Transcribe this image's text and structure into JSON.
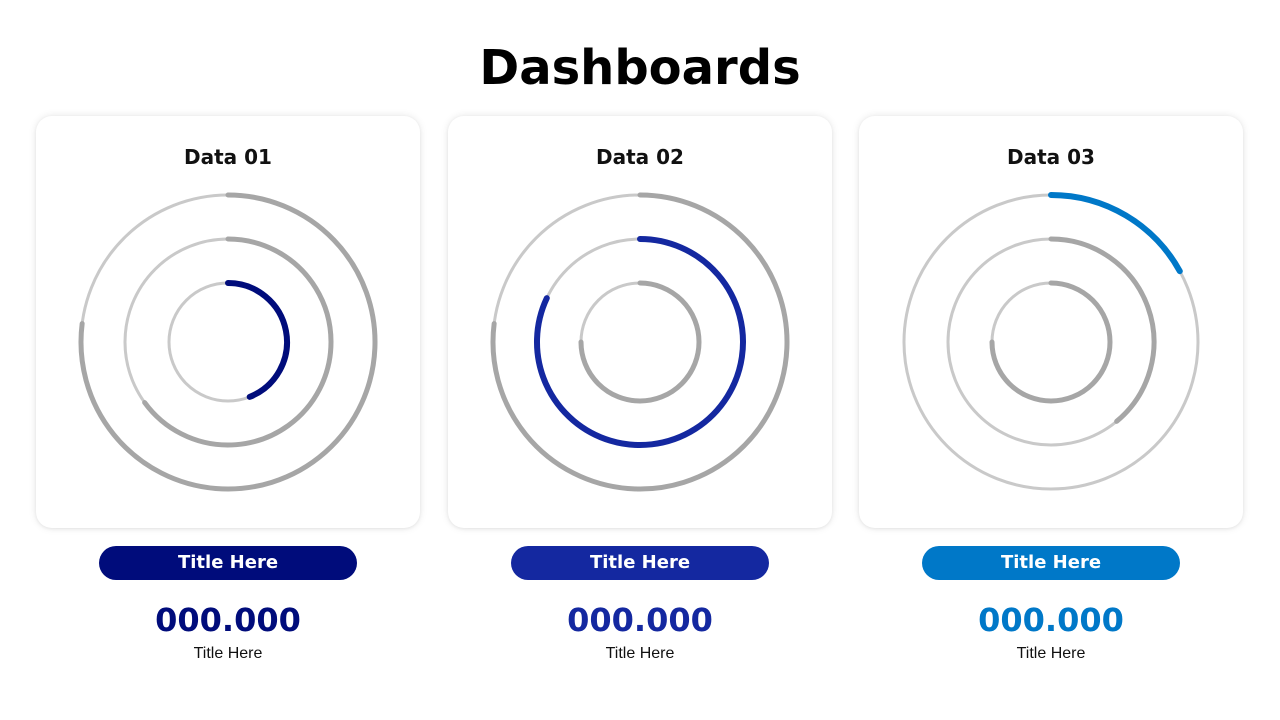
{
  "page": {
    "title": "Dashboards"
  },
  "colors": {
    "track": "#c9c9c9",
    "track_thick": "#a6a6a6",
    "dark_navy": "#000c7b",
    "royal_blue": "#1428a0",
    "sky_blue": "#0078c8"
  },
  "chart_data": [
    {
      "type": "radial-progress",
      "title": "Data 01",
      "accent": "#000c7b",
      "label": "Title Here",
      "value": "000.000",
      "caption": "Title Here",
      "rings": [
        {
          "ring": "outer",
          "fraction": 0.77,
          "highlight": false
        },
        {
          "ring": "middle",
          "fraction": 0.65,
          "highlight": false
        },
        {
          "ring": "inner",
          "fraction": 0.44,
          "highlight": true
        }
      ]
    },
    {
      "type": "radial-progress",
      "title": "Data 02",
      "accent": "#1428a0",
      "label": "Title Here",
      "value": "000.000",
      "caption": "Title Here",
      "rings": [
        {
          "ring": "outer",
          "fraction": 0.77,
          "highlight": false
        },
        {
          "ring": "middle",
          "fraction": 0.82,
          "highlight": true
        },
        {
          "ring": "inner",
          "fraction": 0.75,
          "highlight": false
        }
      ]
    },
    {
      "type": "radial-progress",
      "title": "Data 03",
      "accent": "#0078c8",
      "label": "Title Here",
      "value": "000.000",
      "caption": "Title Here",
      "rings": [
        {
          "ring": "outer",
          "fraction": 0.17,
          "highlight": true
        },
        {
          "ring": "middle",
          "fraction": 0.39,
          "highlight": false
        },
        {
          "ring": "inner",
          "fraction": 0.75,
          "highlight": false
        }
      ]
    }
  ]
}
